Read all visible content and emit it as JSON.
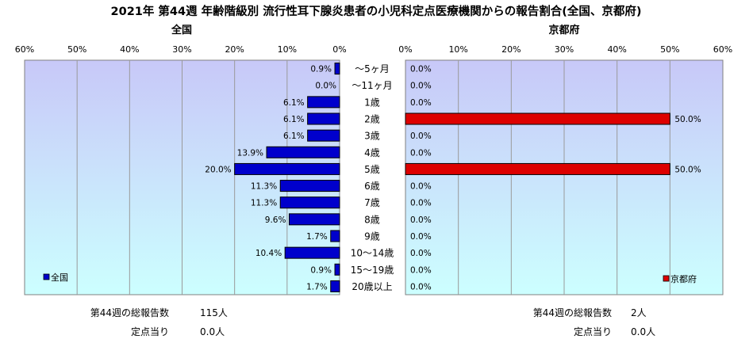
{
  "title": "2021年 第44週 年齢階級別 流行性耳下腺炎患者の小児科定点医療機関からの報告割合(全国、京都府)",
  "colors": {
    "national": "#0000cc",
    "kyoto": "#dd0000",
    "plot_bg_top": "#c8c8f8",
    "plot_bg_bottom": "#ccffff"
  },
  "chart_data": [
    {
      "type": "bar",
      "orientation": "horizontal-left",
      "title": "全国",
      "categories": [
        "～5ヶ月",
        "～11ヶ月",
        "1歳",
        "2歳",
        "3歳",
        "4歳",
        "5歳",
        "6歳",
        "7歳",
        "8歳",
        "9歳",
        "10～14歳",
        "15～19歳",
        "20歳以上"
      ],
      "series": [
        {
          "name": "全国",
          "values": [
            0.9,
            0.0,
            6.1,
            6.1,
            6.1,
            13.9,
            20.0,
            11.3,
            11.3,
            9.6,
            1.7,
            10.4,
            0.9,
            1.7
          ]
        }
      ],
      "value_labels": [
        "0.9%",
        "0.0%",
        "6.1%",
        "6.1%",
        "6.1%",
        "13.9%",
        "20.0%",
        "11.3%",
        "11.3%",
        "9.6%",
        "1.7%",
        "10.4%",
        "0.9%",
        "1.7%"
      ],
      "xlim": [
        0,
        60
      ],
      "x_ticks": [
        "60%",
        "50%",
        "40%",
        "30%",
        "20%",
        "10%",
        "0%"
      ],
      "legend": "bottom-left",
      "grid": true
    },
    {
      "type": "bar",
      "orientation": "horizontal-right",
      "title": "京都府",
      "categories": [
        "～5ヶ月",
        "～11ヶ月",
        "1歳",
        "2歳",
        "3歳",
        "4歳",
        "5歳",
        "6歳",
        "7歳",
        "8歳",
        "9歳",
        "10～14歳",
        "15～19歳",
        "20歳以上"
      ],
      "series": [
        {
          "name": "京都府",
          "values": [
            0.0,
            0.0,
            0.0,
            50.0,
            0.0,
            0.0,
            50.0,
            0.0,
            0.0,
            0.0,
            0.0,
            0.0,
            0.0,
            0.0
          ]
        }
      ],
      "value_labels": [
        "0.0%",
        "0.0%",
        "0.0%",
        "50.0%",
        "0.0%",
        "0.0%",
        "50.0%",
        "0.0%",
        "0.0%",
        "0.0%",
        "0.0%",
        "0.0%",
        "0.0%",
        "0.0%"
      ],
      "xlim": [
        0,
        60
      ],
      "x_ticks": [
        "0%",
        "10%",
        "20%",
        "30%",
        "40%",
        "50%",
        "60%"
      ],
      "legend": "bottom-right",
      "grid": true
    }
  ],
  "summary": {
    "national": {
      "total_label": "第44週の総報告数",
      "total_value": "115人",
      "per_site_label": "定点当り",
      "per_site_value": "0.0人"
    },
    "kyoto": {
      "total_label": "第44週の総報告数",
      "total_value": "2人",
      "per_site_label": "定点当り",
      "per_site_value": "0.0人"
    }
  }
}
